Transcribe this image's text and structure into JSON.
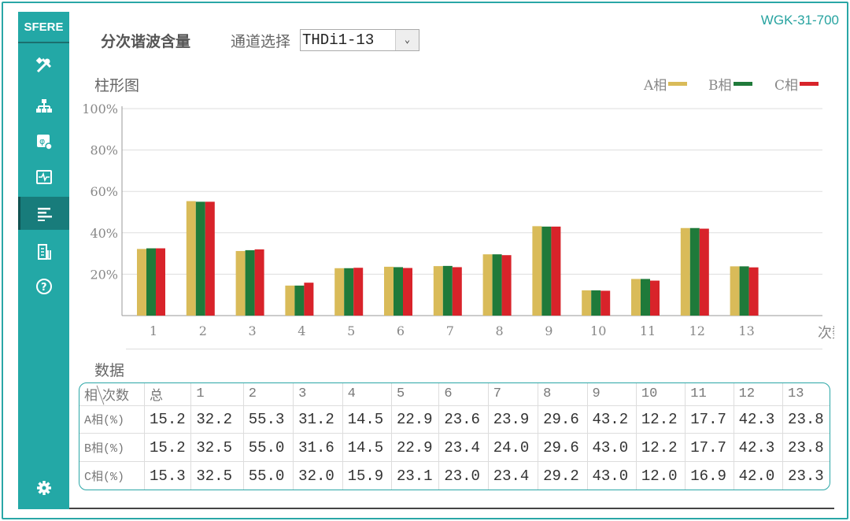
{
  "brand_code": "WGK-31-700",
  "sidebar": {
    "logo": "SFERE",
    "items": [
      {
        "icon": "tools-icon"
      },
      {
        "icon": "network-icon"
      },
      {
        "icon": "phase-meter-icon"
      },
      {
        "icon": "waveform-icon"
      },
      {
        "icon": "bar-list-icon",
        "active": true
      },
      {
        "icon": "report-icon"
      },
      {
        "icon": "help-icon"
      }
    ],
    "settings_icon": "gear-icon"
  },
  "header": {
    "title": "分次谐波含量",
    "channel_label": "通道选择",
    "channel_value": "THDi1-13"
  },
  "colors": {
    "A": "#d9bb59",
    "B": "#1f7a3a",
    "C": "#d8232a",
    "accent": "#23a8a6"
  },
  "chart_section_label": "柱形图",
  "legend": {
    "a": "A相",
    "b": "B相",
    "c": "C相"
  },
  "chart_data": {
    "type": "bar",
    "categories": [
      "1",
      "2",
      "3",
      "4",
      "5",
      "6",
      "7",
      "8",
      "9",
      "10",
      "11",
      "12",
      "13"
    ],
    "xlabel": "次数",
    "ylabel": "",
    "ylim": [
      0,
      100
    ],
    "yticks": [
      "20%",
      "40%",
      "60%",
      "80%",
      "100%"
    ],
    "series": [
      {
        "name": "A相",
        "values": [
          32.2,
          55.3,
          31.2,
          14.5,
          22.9,
          23.6,
          23.9,
          29.6,
          43.2,
          12.2,
          17.7,
          42.3,
          23.8
        ]
      },
      {
        "name": "B相",
        "values": [
          32.5,
          55.0,
          31.6,
          14.5,
          22.9,
          23.4,
          24.0,
          29.6,
          43.0,
          12.2,
          17.7,
          42.3,
          23.8
        ]
      },
      {
        "name": "C相",
        "values": [
          32.5,
          55.0,
          32.0,
          15.9,
          23.1,
          23.0,
          23.4,
          29.2,
          43.0,
          12.0,
          16.9,
          42.0,
          23.3
        ]
      }
    ]
  },
  "data_section_label": "数据",
  "table": {
    "corner_left": "相",
    "corner_right": "次数",
    "headers": [
      "总",
      "1",
      "2",
      "3",
      "4",
      "5",
      "6",
      "7",
      "8",
      "9",
      "10",
      "11",
      "12",
      "13"
    ],
    "rows": [
      {
        "label": "A相(%)",
        "values": [
          "15.2",
          "32.2",
          "55.3",
          "31.2",
          "14.5",
          "22.9",
          "23.6",
          "23.9",
          "29.6",
          "43.2",
          "12.2",
          "17.7",
          "42.3",
          "23.8"
        ]
      },
      {
        "label": "B相(%)",
        "values": [
          "15.2",
          "32.5",
          "55.0",
          "31.6",
          "14.5",
          "22.9",
          "23.4",
          "24.0",
          "29.6",
          "43.0",
          "12.2",
          "17.7",
          "42.3",
          "23.8"
        ]
      },
      {
        "label": "C相(%)",
        "values": [
          "15.3",
          "32.5",
          "55.0",
          "32.0",
          "15.9",
          "23.1",
          "23.0",
          "23.4",
          "29.2",
          "43.0",
          "12.0",
          "16.9",
          "42.0",
          "23.3"
        ]
      }
    ]
  }
}
